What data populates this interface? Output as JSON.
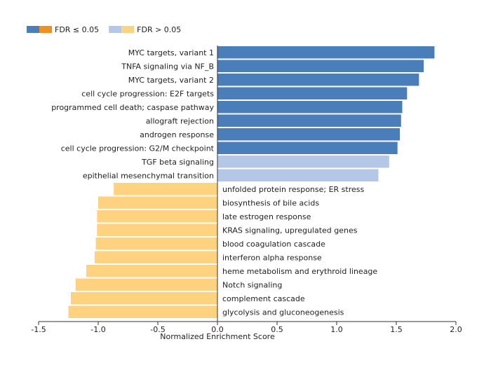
{
  "chart_data": {
    "type": "bar",
    "orientation": "horizontal",
    "title": "",
    "xlabel": "Normalized Enrichment Score",
    "ylabel": "",
    "xlim": [
      -1.5,
      2.0
    ],
    "xticks": [
      -1.5,
      -1.0,
      -0.5,
      0.0,
      0.5,
      1.0,
      1.5,
      2.0
    ],
    "xtick_labels": [
      "-1.5",
      "-1.0",
      "-0.5",
      "0.0",
      "0.5",
      "1.0",
      "1.5",
      "2.0"
    ],
    "grid": false,
    "legend_position": "top-left",
    "legend": [
      {
        "label": "FDR ≤ 0.05",
        "colors": [
          "#4a7ebb",
          "#f28e1c"
        ]
      },
      {
        "label": "FDR > 0.05",
        "colors": [
          "#b4c7e7",
          "#ffd27f"
        ]
      }
    ],
    "categories": [
      "MYC targets, variant 1",
      "TNFA signaling via NF_B",
      "MYC targets, variant 2",
      "cell cycle progression: E2F targets",
      "programmed cell death; caspase pathway",
      "allograft rejection",
      "androgen response",
      "cell cycle progression: G2/M checkpoint",
      "TGF beta signaling",
      "epithelial mesenchymal transition",
      "unfolded protein response; ER stress",
      "biosynthesis of bile acids",
      "late estrogen response",
      "KRAS signaling, upregulated genes",
      "blood coagulation cascade",
      "interferon alpha response",
      "heme metabolism and erythroid lineage",
      "Notch signaling",
      "complement cascade",
      "glycolysis and gluconeogenesis"
    ],
    "values": [
      1.82,
      1.73,
      1.69,
      1.59,
      1.55,
      1.54,
      1.53,
      1.51,
      1.44,
      1.35,
      -0.87,
      -1.0,
      -1.01,
      -1.01,
      -1.02,
      -1.03,
      -1.1,
      -1.19,
      -1.23,
      -1.25
    ],
    "significant": [
      true,
      true,
      true,
      true,
      true,
      true,
      true,
      true,
      false,
      false,
      false,
      false,
      false,
      false,
      false,
      false,
      false,
      false,
      false,
      false
    ],
    "colors": {
      "up_significant": "#4a7ebb",
      "up_nonsignificant": "#b4c7e7",
      "down_significant": "#f28e1c",
      "down_nonsignificant": "#ffd27f"
    }
  }
}
